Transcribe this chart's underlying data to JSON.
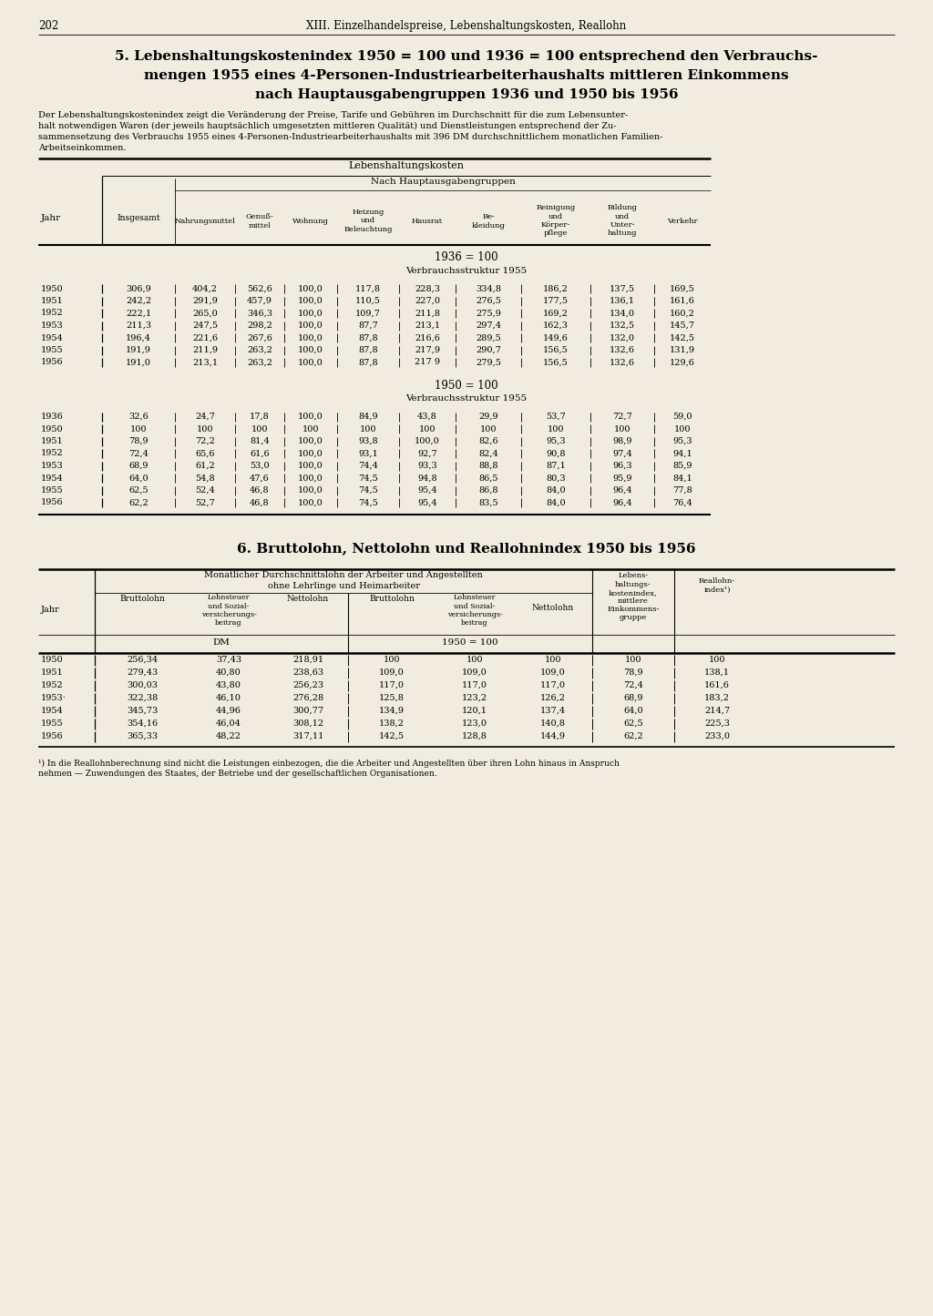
{
  "page_number": "202",
  "page_header": "XIII. Einzelhandelspreise, Lebenshaltungskosten, Reallohn",
  "bg_color": "#f0ece0",
  "section5_title_line1": "5. Lebenshaltungskostenindex 1950 = 100 und 1936 = 100 entsprechend den Verbrauchs-",
  "section5_title_line2": "mengen 1955 eines 4-Personen-Industriearbeiterhaushalts mittleren Einkommens",
  "section5_title_line3": "nach Hauptausgabengruppen 1936 und 1950 bis 1956",
  "section5_desc_lines": [
    "Der Lebenshaltungskostenindex zeigt die Veränderung der Preise, Tarife und Gebühren im Durchschnitt für die zum Lebensunter-",
    "halt notwendigen Waren (der jeweils hauptsächlich umgesetzten mittleren Qualität) und Dienstleistungen entsprechend der Zu-",
    "sammensetzung des Verbrauchs 1955 eines 4-Personen-Industriearbeiterhaushalts mit 396 DM durchschnittlichem monatlichen Familien-",
    "Arbeitseinkommen."
  ],
  "data_1936_100": [
    [
      "1950",
      "306,9",
      "404,2",
      "562,6",
      "100,0",
      "117,8",
      "228,3",
      "334,8",
      "186,2",
      "137,5",
      "169,5"
    ],
    [
      "1951",
      "242,2",
      "291,9",
      "457,9",
      "100,0",
      "110,5",
      "227,0",
      "276,5",
      "177,5",
      "136,1",
      "161,6"
    ],
    [
      "1952",
      "222,1",
      "265,0",
      "346,3",
      "100,0",
      "109,7",
      "211,8",
      "275,9",
      "169,2",
      "134,0",
      "160,2"
    ],
    [
      "1953",
      "211,3",
      "247,5",
      "298,2",
      "100,0",
      "87,7",
      "213,1",
      "297,4",
      "162,3",
      "132,5",
      "145,7"
    ],
    [
      "1954",
      "196,4",
      "221,6",
      "267,6",
      "100,0",
      "87,8",
      "216,6",
      "289,5",
      "149,6",
      "132,0",
      "142,5"
    ],
    [
      "1955",
      "191,9",
      "211,9",
      "263,2",
      "100,0",
      "87,8",
      "217,9",
      "290,7",
      "156,5",
      "132,6",
      "131,9"
    ],
    [
      "1956",
      "191,0",
      "213,1",
      "263,2",
      "100,0",
      "87,8",
      "217 9",
      "279,5",
      "156,5",
      "132,6",
      "129,6"
    ]
  ],
  "data_1950_100": [
    [
      "1936",
      "32,6",
      "24,7",
      "17,8",
      "100,0",
      "84,9",
      "43,8",
      "29,9",
      "53,7",
      "72,7",
      "59,0"
    ],
    [
      "1950",
      "100",
      "100",
      "100",
      "100",
      "100",
      "100",
      "100",
      "100",
      "100",
      "100"
    ],
    [
      "1951",
      "78,9",
      "72,2",
      "81,4",
      "100,0",
      "93,8",
      "100,0",
      "82,6",
      "95,3",
      "98,9",
      "95,3"
    ],
    [
      "1952",
      "72,4",
      "65,6",
      "61,6",
      "100,0",
      "93,1",
      "92,7",
      "82,4",
      "90,8",
      "97,4",
      "94,1"
    ],
    [
      "1953",
      "68,9",
      "61,2",
      "53,0",
      "100,0",
      "74,4",
      "93,3",
      "88,8",
      "87,1",
      "96,3",
      "85,9"
    ],
    [
      "1954",
      "64,0",
      "54,8",
      "47,6",
      "100,0",
      "74,5",
      "94,8",
      "86,5",
      "80,3",
      "95,9",
      "84,1"
    ],
    [
      "1955",
      "62,5",
      "52,4",
      "46,8",
      "100,0",
      "74,5",
      "95,4",
      "86,8",
      "84,0",
      "96,4",
      "77,8"
    ],
    [
      "1956",
      "62,2",
      "52,7",
      "46,8",
      "100,0",
      "74,5",
      "95,4",
      "83,5",
      "84,0",
      "96,4",
      "76,4"
    ]
  ],
  "section6_title": "6. Bruttolohn, Nettolohn und Reallohnindex 1950 bis 1956",
  "table2_col_lebens": "Lebens-\nhaltungs-\nkostenindex,\nmittlere\nEinkommens-\ngruppe",
  "table2_col_reallohn": "Reallohn-\nindex¹)",
  "data_table2": [
    [
      "1950",
      "256,34",
      "37,43",
      "218,91",
      "100",
      "100",
      "100",
      "100",
      "100"
    ],
    [
      "1951",
      "279,43",
      "40,80",
      "238,63",
      "109,0",
      "109,0",
      "109,0",
      "78,9",
      "138,1"
    ],
    [
      "1952",
      "300,03",
      "43,80",
      "256,23",
      "117,0",
      "117,0",
      "117,0",
      "72,4",
      "161,6"
    ],
    [
      "1953·",
      "322,38",
      "46,10",
      "276,28",
      "125,8",
      "123,2",
      "126,2",
      "68,9",
      "183,2"
    ],
    [
      "1954",
      "345,73",
      "44,96",
      "300,77",
      "134,9",
      "120,1",
      "137,4",
      "64,0",
      "214,7"
    ],
    [
      "1955",
      "354,16",
      "46,04",
      "308,12",
      "138,2",
      "123,0",
      "140,8",
      "62,5",
      "225,3"
    ],
    [
      "1956",
      "365,33",
      "48,22",
      "317,11",
      "142,5",
      "128,8",
      "144,9",
      "62,2",
      "233,0"
    ]
  ],
  "footnote_lines": [
    "¹) In die Reallohnberechnung sind nicht die Leistungen einbezogen, die die Arbeiter und Angestellten über ihren Lohn hinaus in Anspruch",
    "nehmen — Zuwendungen des Staates, der Betriebe und der gesellschaftlichen Organisationen."
  ]
}
